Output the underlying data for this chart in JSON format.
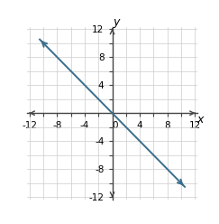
{
  "xlim": [
    -12,
    12
  ],
  "ylim": [
    -12,
    12
  ],
  "xtick_major": [
    -12,
    -8,
    -4,
    0,
    4,
    8,
    12
  ],
  "ytick_major": [
    -12,
    -8,
    -4,
    4,
    8,
    12
  ],
  "grid_minor_step": 2,
  "xlabel": "x",
  "ylabel": "y",
  "line_x": [
    -10.6,
    10.6
  ],
  "line_y": [
    10.6,
    -10.6
  ],
  "line_color": "#3a6e8c",
  "line_width": 1.4,
  "grid_color": "#cccccc",
  "axis_color": "#444444",
  "background_color": "#ffffff",
  "tick_fontsize": 7.5,
  "label_fontsize": 9
}
